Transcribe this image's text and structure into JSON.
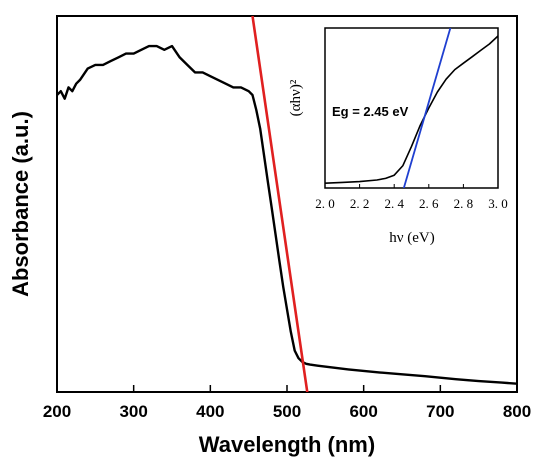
{
  "chart_data": [
    {
      "type": "line",
      "title": "",
      "xlabel": "Wavelength (nm)",
      "ylabel": "Absorbance (a.u.)",
      "xlim": [
        200,
        800
      ],
      "ylim": [
        0,
        1.0
      ],
      "xticks": [
        "200",
        "300",
        "400",
        "500",
        "600",
        "700",
        "800"
      ],
      "yticks_shown": false,
      "grid": false,
      "series": [
        {
          "color": "#000000",
          "x": [
            200,
            205,
            210,
            215,
            220,
            225,
            230,
            240,
            250,
            260,
            270,
            280,
            290,
            300,
            310,
            320,
            330,
            340,
            350,
            360,
            370,
            380,
            390,
            400,
            410,
            420,
            430,
            440,
            450,
            455,
            460,
            465,
            470,
            475,
            480,
            485,
            490,
            495,
            500,
            505,
            510,
            515,
            520,
            525,
            530,
            540,
            560,
            580,
            600,
            620,
            650,
            680,
            700,
            720,
            750,
            780,
            800
          ],
          "y": [
            0.79,
            0.8,
            0.78,
            0.81,
            0.8,
            0.82,
            0.83,
            0.86,
            0.87,
            0.87,
            0.88,
            0.89,
            0.9,
            0.9,
            0.91,
            0.92,
            0.92,
            0.91,
            0.92,
            0.89,
            0.87,
            0.85,
            0.85,
            0.84,
            0.83,
            0.82,
            0.81,
            0.81,
            0.8,
            0.79,
            0.75,
            0.7,
            0.63,
            0.56,
            0.49,
            0.42,
            0.35,
            0.28,
            0.22,
            0.16,
            0.11,
            0.09,
            0.08,
            0.075,
            0.073,
            0.07,
            0.065,
            0.06,
            0.056,
            0.052,
            0.047,
            0.042,
            0.038,
            0.034,
            0.029,
            0.025,
            0.022
          ]
        },
        {
          "color": "#e02020",
          "x": [
            455,
            530
          ],
          "y": [
            1.0,
            -0.05
          ]
        }
      ]
    },
    {
      "type": "line",
      "title": "",
      "xlabel": "hν (eV)",
      "ylabel": "(αhν)²",
      "xlim": [
        2.0,
        3.0
      ],
      "ylim": [
        0,
        1.0
      ],
      "xticks": [
        "2. 0",
        "2. 2",
        "2. 4",
        "2. 6",
        "2. 8",
        "3. 0"
      ],
      "annotation": "Eg = 2.45 eV",
      "series": [
        {
          "color": "#000000",
          "x": [
            2.0,
            2.1,
            2.2,
            2.3,
            2.35,
            2.4,
            2.45,
            2.5,
            2.55,
            2.6,
            2.65,
            2.7,
            2.75,
            2.8,
            2.85,
            2.9,
            2.95,
            3.0
          ],
          "y": [
            0.03,
            0.035,
            0.04,
            0.05,
            0.06,
            0.08,
            0.14,
            0.26,
            0.39,
            0.5,
            0.6,
            0.68,
            0.74,
            0.78,
            0.82,
            0.86,
            0.9,
            0.95
          ]
        },
        {
          "color": "#1f3fd0",
          "x": [
            2.45,
            2.73
          ],
          "y": [
            -0.02,
            1.02
          ]
        }
      ]
    }
  ]
}
